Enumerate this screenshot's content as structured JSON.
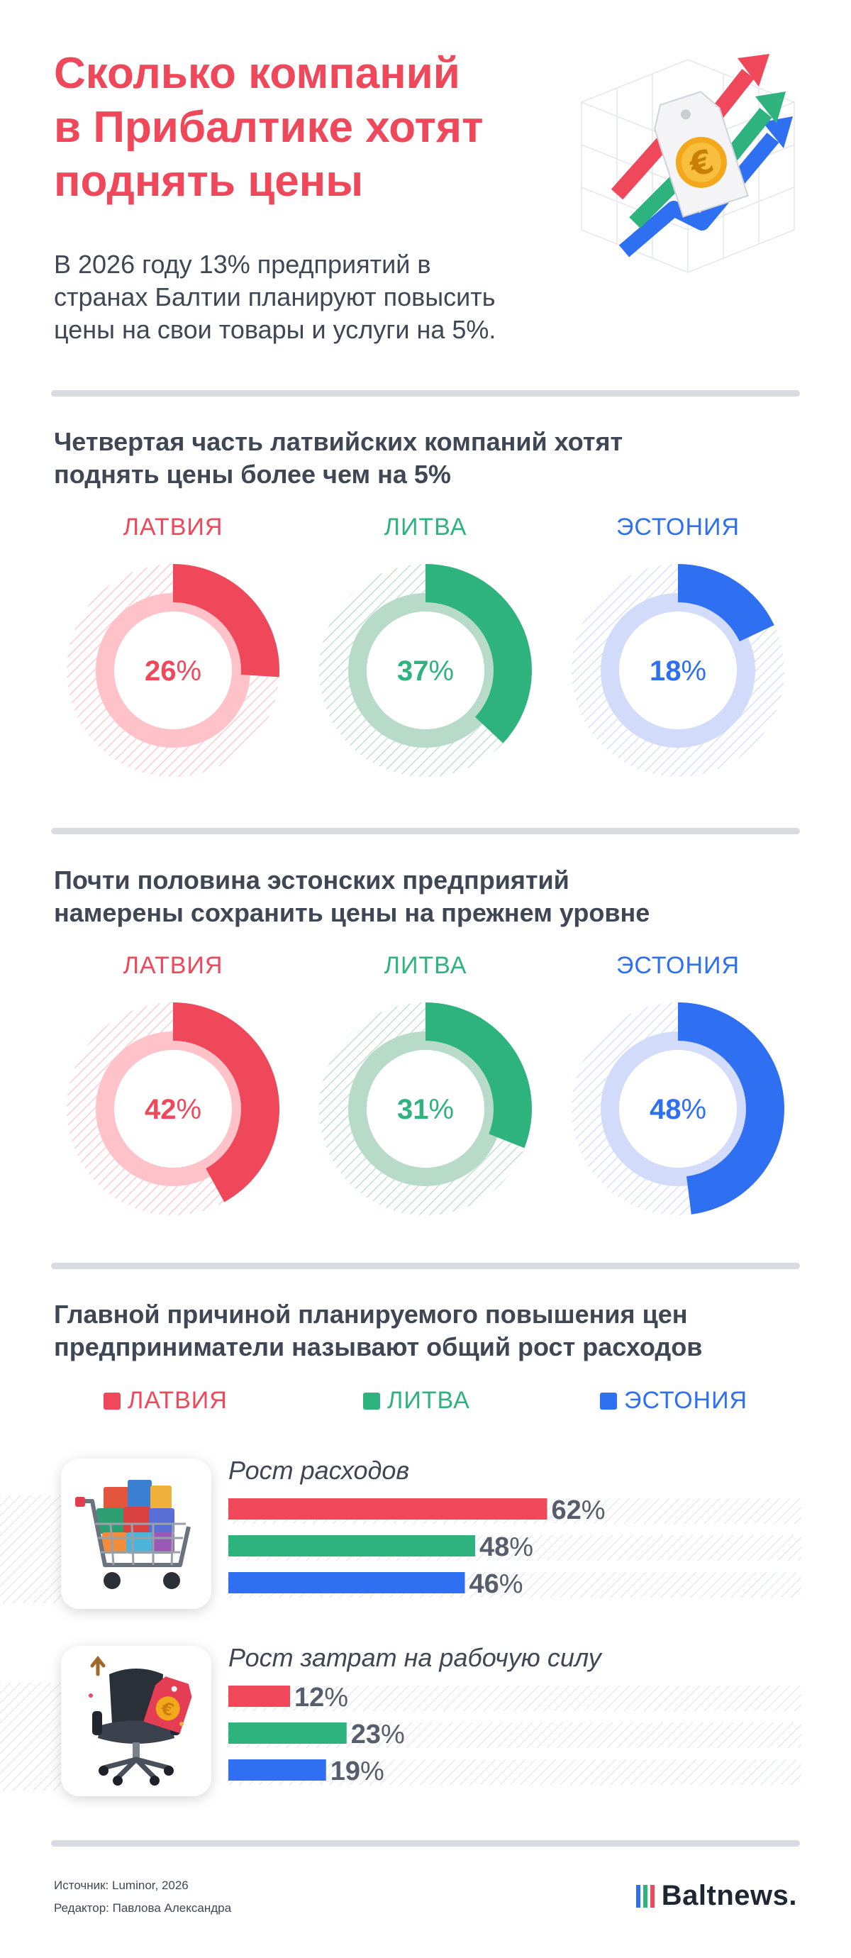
{
  "header": {
    "title_lines": [
      "Сколько компаний",
      "в Прибалтике хотят",
      "поднять цены"
    ],
    "lead_lines": [
      "В 2026 году 13% предприятий в",
      "странах Балтии планируют повысить",
      "цены на свои товары и услуги на 5%."
    ]
  },
  "colors": {
    "latvia": "#f0485b",
    "lithuania": "#2fb37e",
    "estonia": "#2f6ff2",
    "latvia_light": "#ffc2c8",
    "lithuania_light": "#b8dbc9",
    "estonia_light": "#d3dbfb"
  },
  "section1": {
    "title_lines": [
      "Четвертая часть латвийских компаний хотят",
      "поднять цены более чем на 5%"
    ],
    "countries": [
      "ЛАТВИЯ",
      "ЛИТВА",
      "ЭСТОНИЯ"
    ]
  },
  "section2": {
    "title_lines": [
      "Почти половина эстонских предприятий",
      "намерены сохранить цены на прежнем уровне"
    ],
    "countries": [
      "ЛАТВИЯ",
      "ЛИТВА",
      "ЭСТОНИЯ"
    ]
  },
  "section3": {
    "title_lines": [
      "Главной причиной планируемого повышения цен",
      "предприниматели называют общий рост расходов"
    ],
    "legend": [
      "ЛАТВИЯ",
      "ЛИТВА",
      "ЭСТОНИЯ"
    ]
  },
  "chart_data": [
    {
      "type": "pie",
      "title": "Четвертая часть латвийских компаний хотят поднять цены более чем на 5%",
      "categories": [
        "ЛАТВИЯ",
        "ЛИТВА",
        "ЭСТОНИЯ"
      ],
      "values": [
        26,
        37,
        18
      ],
      "unit": "%"
    },
    {
      "type": "pie",
      "title": "Почти половина эстонских предприятий намерены сохранить цены на прежнем уровне",
      "categories": [
        "ЛАТВИЯ",
        "ЛИТВА",
        "ЭСТОНИЯ"
      ],
      "values": [
        42,
        31,
        48
      ],
      "unit": "%"
    },
    {
      "type": "bar",
      "title": "Главной причиной планируемого повышения цен предприниматели называют общий рост расходов",
      "categories": [
        "Рост расходов",
        "Рост затрат на рабочую силу"
      ],
      "series": [
        {
          "name": "ЛАТВИЯ",
          "values": [
            62,
            12
          ]
        },
        {
          "name": "ЛИТВА",
          "values": [
            48,
            23
          ]
        },
        {
          "name": "ЭСТОНИЯ",
          "values": [
            46,
            19
          ]
        }
      ],
      "unit": "%",
      "ylim": [
        0,
        100
      ]
    }
  ],
  "footer": {
    "source": "Источник: Luminor, 2026",
    "editor": "Редактор: Павлова Александра",
    "logo": "Baltnews."
  },
  "icons": [
    "growth-arrows-icon",
    "shopping-cart-icon",
    "office-chair-icon"
  ]
}
